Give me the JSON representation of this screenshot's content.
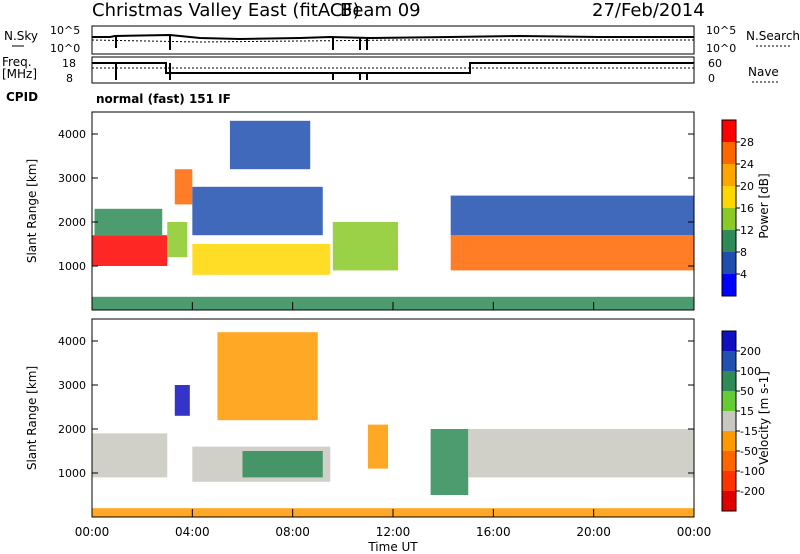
{
  "title": {
    "left": "Christmas Valley East (fitACF)",
    "beam": "Beam 09",
    "date": "27/Feb/2014"
  },
  "top_panel": {
    "left_label": "N.Sky",
    "right_label": "N.Search",
    "left_ticks": [
      "10^5",
      "10^0"
    ],
    "right_ticks": [
      "10^5",
      "10^0"
    ]
  },
  "freq_panel": {
    "left_label_1": "Freq.",
    "left_label_2": "[MHz]",
    "right_label": "Nave",
    "left_ticks": [
      "18",
      "8"
    ],
    "right_ticks": [
      "60",
      "0"
    ]
  },
  "cpid": {
    "label": "CPID",
    "value": "normal (fast) 151 IF"
  },
  "x_axis": {
    "label": "Time UT",
    "ticks": [
      "00:00",
      "04:00",
      "08:00",
      "12:00",
      "16:00",
      "20:00",
      "00:00"
    ]
  },
  "power_colorbar": {
    "label": "Power [dB]",
    "ticks": [
      "28",
      "24",
      "20",
      "16",
      "12",
      "8",
      "4"
    ],
    "colors": [
      "#ff0000",
      "#ff6600",
      "#ffa500",
      "#ffd700",
      "#8ac926",
      "#2e8b57",
      "#1e4fb0",
      "#0000ff"
    ]
  },
  "velocity_colorbar": {
    "label": "Velocity [m s-1]",
    "ticks": [
      "200",
      "100",
      "50",
      "15",
      "-15",
      "-50",
      "-100",
      "-200"
    ],
    "colors": [
      "#1010c0",
      "#2050b0",
      "#2e8b57",
      "#66cc33",
      "#c8c8c0",
      "#ff9900",
      "#ff6600",
      "#ff3300",
      "#e00000"
    ]
  },
  "chart_data": [
    {
      "type": "heatmap",
      "name_in_image": "Power [dB]",
      "ylabel": "Slant Range [km]",
      "xlabel": "Time UT",
      "ylim": [
        0,
        4500
      ],
      "yticks": [
        1000,
        2000,
        3000,
        4000
      ],
      "xlim": [
        0,
        24
      ],
      "x_unit": "hours UT",
      "regions": [
        {
          "t0": 0.0,
          "t1": 3.0,
          "r0": 1000,
          "r1": 1700,
          "value": 26
        },
        {
          "t0": 0.1,
          "t1": 2.8,
          "r0": 1700,
          "r1": 2300,
          "value": 10
        },
        {
          "t0": 3.0,
          "t1": 3.8,
          "r0": 1200,
          "r1": 2000,
          "value": 14
        },
        {
          "t0": 3.3,
          "t1": 4.0,
          "r0": 2400,
          "r1": 3200,
          "value": 22
        },
        {
          "t0": 4.0,
          "t1": 9.5,
          "r0": 800,
          "r1": 1500,
          "value": 16
        },
        {
          "t0": 4.0,
          "t1": 9.2,
          "r0": 1700,
          "r1": 2800,
          "value": 8
        },
        {
          "t0": 5.5,
          "t1": 8.7,
          "r0": 3200,
          "r1": 4300,
          "value": 6
        },
        {
          "t0": 9.6,
          "t1": 12.2,
          "r0": 900,
          "r1": 2000,
          "value": 14
        },
        {
          "t0": 14.3,
          "t1": 24.0,
          "r0": 900,
          "r1": 1700,
          "value": 24
        },
        {
          "t0": 14.3,
          "t1": 24.0,
          "r0": 1700,
          "r1": 2600,
          "value": 8
        },
        {
          "t0": 0.0,
          "t1": 24.0,
          "r0": 0,
          "r1": 300,
          "value": 10
        }
      ]
    },
    {
      "type": "heatmap",
      "name_in_image": "Velocity [m s-1]",
      "ylabel": "Slant Range [km]",
      "xlabel": "Time UT",
      "ylim": [
        0,
        4500
      ],
      "yticks": [
        1000,
        2000,
        3000,
        4000
      ],
      "xlim": [
        0,
        24
      ],
      "x_unit": "hours UT",
      "regions": [
        {
          "t0": 0.0,
          "t1": 3.0,
          "r0": 900,
          "r1": 1900,
          "value": 0
        },
        {
          "t0": 3.3,
          "t1": 3.9,
          "r0": 2300,
          "r1": 3000,
          "value": 200
        },
        {
          "t0": 4.0,
          "t1": 9.5,
          "r0": 800,
          "r1": 1600,
          "value": 0
        },
        {
          "t0": 6.0,
          "t1": 9.2,
          "r0": 900,
          "r1": 1500,
          "value": 30
        },
        {
          "t0": 5.0,
          "t1": 9.0,
          "r0": 2200,
          "r1": 4200,
          "value": -30
        },
        {
          "t0": 11.0,
          "t1": 11.8,
          "r0": 1100,
          "r1": 2100,
          "value": -50
        },
        {
          "t0": 13.5,
          "t1": 15.0,
          "r0": 500,
          "r1": 2000,
          "value": 40
        },
        {
          "t0": 15.0,
          "t1": 24.0,
          "r0": 900,
          "r1": 2000,
          "value": 0
        },
        {
          "t0": 0.0,
          "t1": 24.0,
          "r0": 0,
          "r1": 200,
          "value": -30
        }
      ]
    }
  ]
}
